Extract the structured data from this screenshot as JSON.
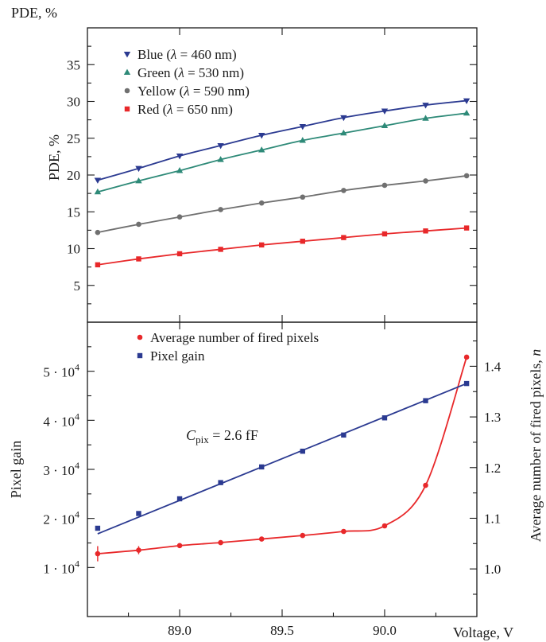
{
  "chart_data": [
    {
      "type": "line",
      "panel": "top",
      "title": "",
      "corner_label": "PDE, %",
      "ylabel": "PDE, %",
      "xlabel": "",
      "xlim": [
        88.55,
        90.45
      ],
      "ylim": [
        0,
        40
      ],
      "yticks": [
        5,
        10,
        15,
        20,
        25,
        30,
        35
      ],
      "grid": false,
      "legend": "top-left",
      "x": [
        88.6,
        88.8,
        89.0,
        89.2,
        89.4,
        89.6,
        89.8,
        90.0,
        90.2,
        90.4
      ],
      "series": [
        {
          "name": "Blue",
          "legend_prefix": "Blue (",
          "lambda_value": "= 460 nm)",
          "marker": "triangle-down",
          "color": "#2b3a91",
          "values": [
            19.3,
            20.9,
            22.6,
            24.0,
            25.4,
            26.6,
            27.8,
            28.7,
            29.5,
            30.1
          ]
        },
        {
          "name": "Green",
          "legend_prefix": "Green (",
          "lambda_value": "= 530 nm)",
          "marker": "triangle-up",
          "color": "#2e8a78",
          "values": [
            17.7,
            19.2,
            20.6,
            22.1,
            23.4,
            24.7,
            25.7,
            26.7,
            27.7,
            28.4
          ]
        },
        {
          "name": "Yellow",
          "legend_prefix": "Yellow (",
          "lambda_value": "= 590 nm)",
          "marker": "circle",
          "color": "#707070",
          "values": [
            12.2,
            13.3,
            14.3,
            15.3,
            16.2,
            17.0,
            17.9,
            18.6,
            19.2,
            19.9
          ]
        },
        {
          "name": "Red",
          "legend_prefix": "Red (",
          "lambda_value": "= 650 nm)",
          "marker": "square",
          "color": "#e8282a",
          "values": [
            7.8,
            8.6,
            9.3,
            9.9,
            10.5,
            11.0,
            11.5,
            12.0,
            12.4,
            12.8
          ]
        }
      ]
    },
    {
      "type": "line",
      "panel": "bottom",
      "title": "",
      "xlabel": "Voltage, V",
      "ylabel_left": "Pixel gain",
      "ylabel_right_prefix": "Average number of fired pixels, ",
      "ylabel_right_var": "n",
      "xlim": [
        88.55,
        90.45
      ],
      "xticks": [
        89.0,
        89.5,
        90.0
      ],
      "xtick_labels": [
        "89.0",
        "89.5",
        "90.0"
      ],
      "ylim_left": [
        0,
        60000
      ],
      "yticks_left": [
        10000,
        20000,
        30000,
        40000,
        50000
      ],
      "ytick_labels_left": [
        {
          "coef": "1",
          "exp": "4"
        },
        {
          "coef": "2",
          "exp": "4"
        },
        {
          "coef": "3",
          "exp": "4"
        },
        {
          "coef": "4",
          "exp": "4"
        },
        {
          "coef": "5",
          "exp": "4"
        }
      ],
      "tick_multiplier": " · 10",
      "ylim_right": [
        0.906,
        1.487
      ],
      "yticks_right": [
        1.0,
        1.1,
        1.2,
        1.3,
        1.4
      ],
      "ytick_labels_right": [
        "1.0",
        "1.1",
        "1.2",
        "1.3",
        "1.4"
      ],
      "grid": false,
      "legend": "top-left",
      "annotation": {
        "symbol": "C",
        "subscript": "pix",
        "value": " = 2.6 fF",
        "x": 89.0,
        "y": 36000
      },
      "x": [
        88.6,
        88.8,
        89.0,
        89.2,
        89.4,
        89.6,
        89.8,
        90.0,
        90.2,
        90.4
      ],
      "series": [
        {
          "name": "Average number of fired pixels",
          "axis": "right",
          "marker": "circle",
          "color": "#e8282a",
          "values": [
            1.03,
            1.037,
            1.046,
            1.052,
            1.059,
            1.066,
            1.074,
            1.085,
            1.165,
            1.418
          ],
          "errors": [
            0.015,
            0.008,
            0,
            0,
            0,
            0,
            0,
            0,
            0,
            0
          ]
        },
        {
          "name": "Pixel gain",
          "axis": "left",
          "marker": "square",
          "color": "#2b3a91",
          "values": [
            18000,
            21000,
            24000,
            27300,
            30500,
            33700,
            37000,
            40500,
            44000,
            47500
          ]
        }
      ]
    }
  ]
}
